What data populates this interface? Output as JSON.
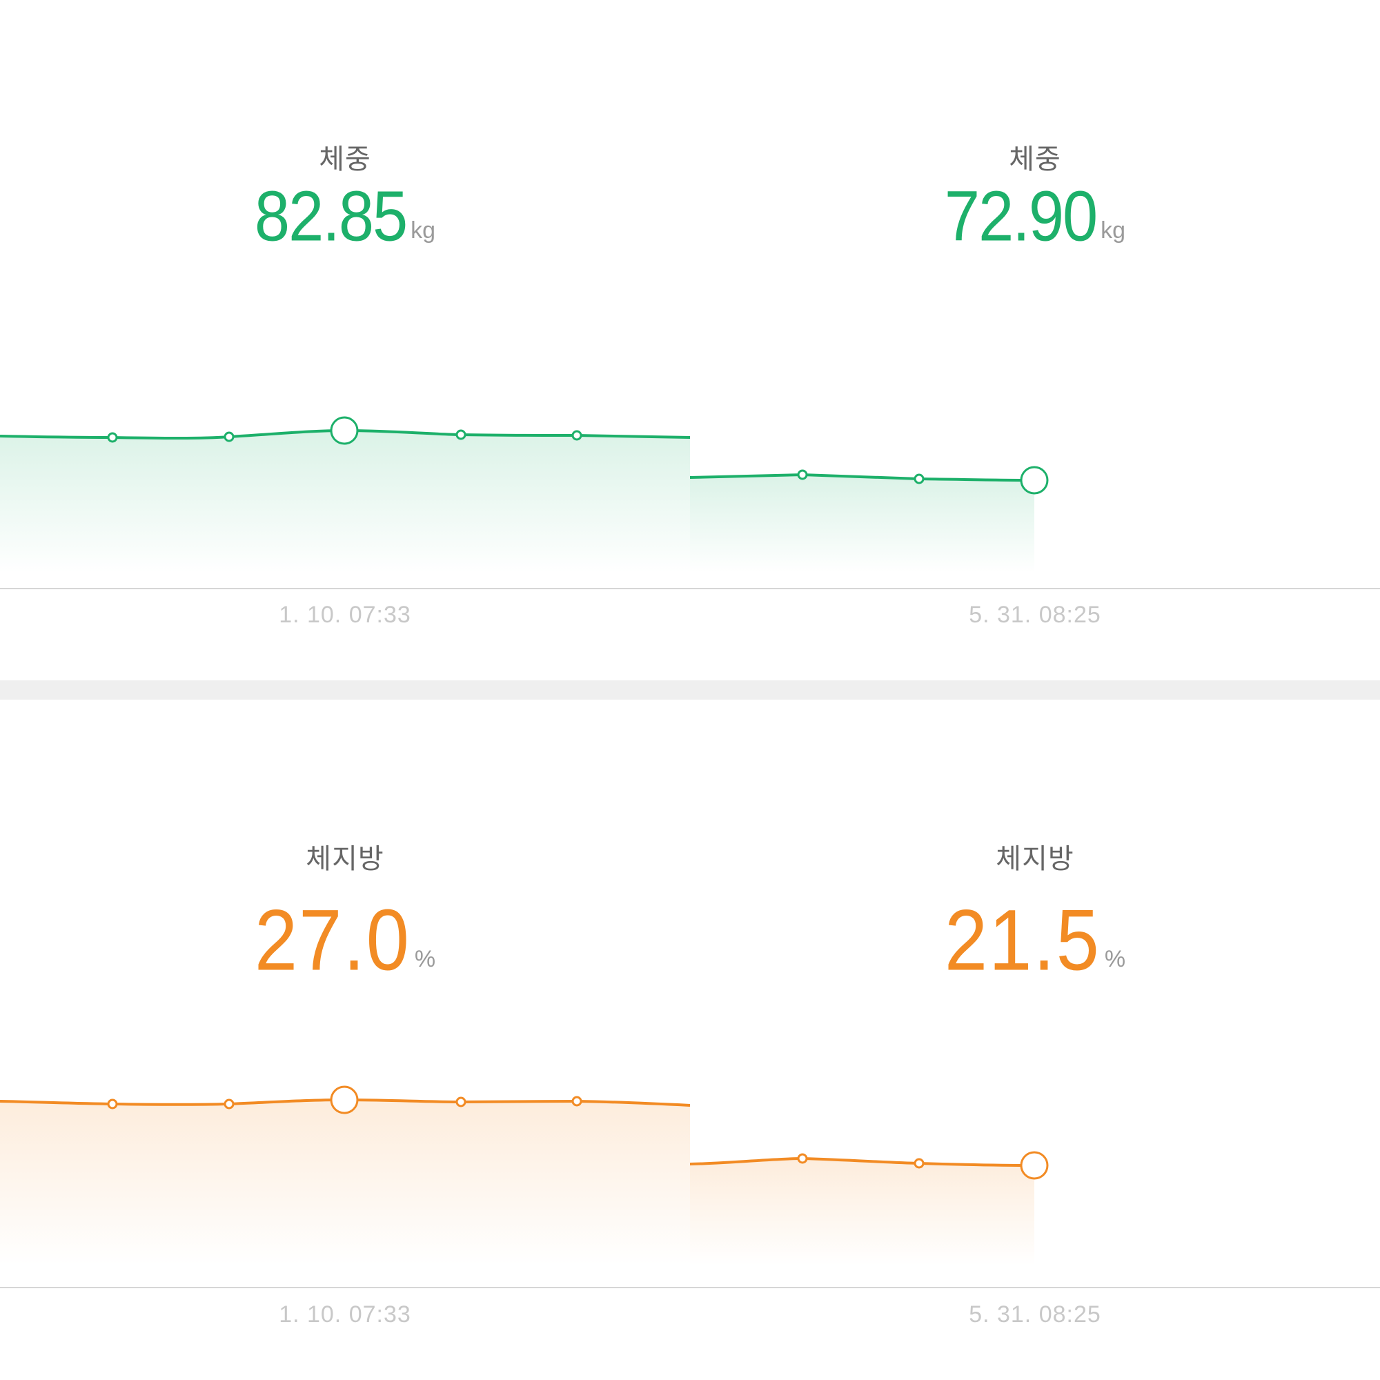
{
  "weight": {
    "left": {
      "label": "체중",
      "value": "82.85",
      "unit": "kg",
      "date": "1. 10. 07:33"
    },
    "right": {
      "label": "체중",
      "value": "72.90",
      "unit": "kg",
      "date": "5. 31. 08:25"
    },
    "line_color": "#1db06a",
    "fill_color": "#1db06a"
  },
  "body_fat": {
    "left": {
      "label": "체지방",
      "value": "27.0",
      "unit": "%",
      "date": "1. 10. 07:33"
    },
    "right": {
      "label": "체지방",
      "value": "21.5",
      "unit": "%",
      "date": "5. 31. 08:25"
    },
    "line_color": "#f28b24",
    "fill_color": "#f28b24"
  }
}
